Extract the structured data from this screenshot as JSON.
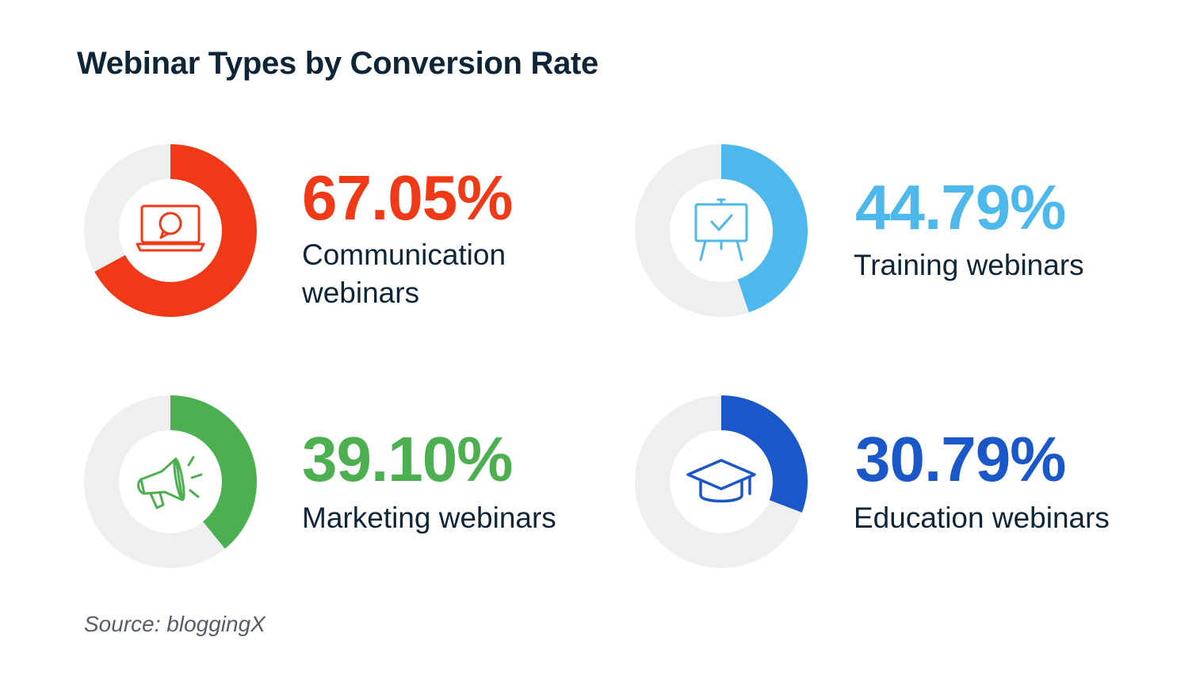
{
  "title": "Webinar Types by Conversion Rate",
  "source": "Source: bloggingX",
  "colors": {
    "track": "#efefef",
    "title": "#0e2538"
  },
  "chart_data": {
    "type": "pie",
    "title": "Webinar Types by Conversion Rate",
    "unit": "%",
    "items": [
      {
        "label": "Communication webinars",
        "value": 67.05,
        "display": "67.05%",
        "color": "#f03a17",
        "icon": "laptop-chat-icon"
      },
      {
        "label": "Training webinars",
        "value": 44.79,
        "display": "44.79%",
        "color": "#4db8ec",
        "icon": "presentation-board-icon"
      },
      {
        "label": "Marketing webinars",
        "value": 39.1,
        "display": "39.10%",
        "color": "#4caf50",
        "icon": "megaphone-icon"
      },
      {
        "label": "Education webinars",
        "value": 30.79,
        "display": "30.79%",
        "color": "#1a57c8",
        "icon": "graduation-cap-icon"
      }
    ]
  }
}
